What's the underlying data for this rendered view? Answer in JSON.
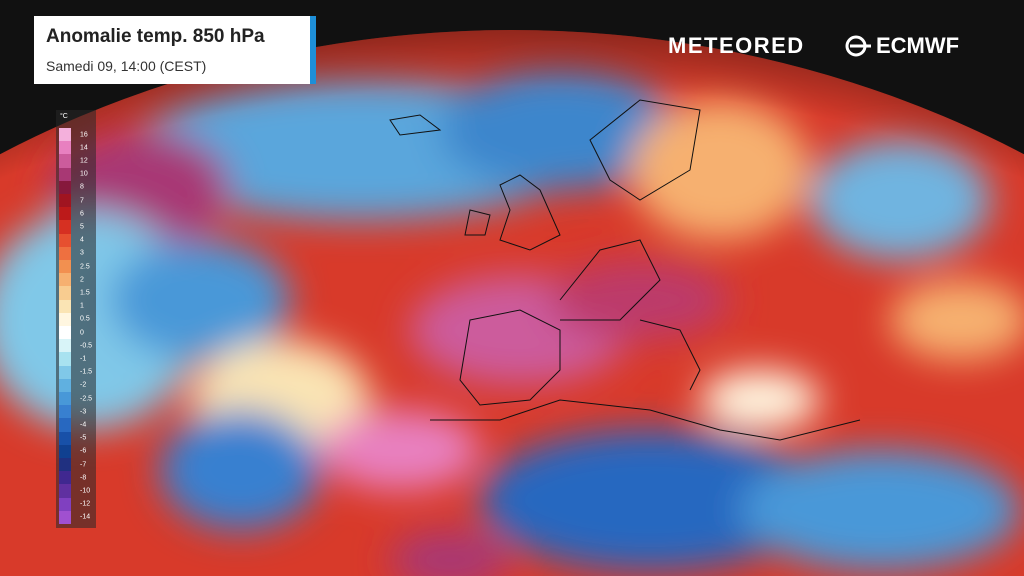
{
  "header": {
    "title": "Anomalie temp. 850 hPa",
    "subtitle": "Samedi 09, 14:00 (CEST)"
  },
  "logos": [
    "METEORED",
    "ECMWF"
  ],
  "legend": {
    "unit": "°C",
    "ticks": [
      {
        "label": "16",
        "color": "#f4b0dc"
      },
      {
        "label": "14",
        "color": "#e880c0"
      },
      {
        "label": "12",
        "color": "#cc5c9c"
      },
      {
        "label": "10",
        "color": "#a83874"
      },
      {
        "label": "8",
        "color": "#86183c"
      },
      {
        "label": "7",
        "color": "#a01420"
      },
      {
        "label": "6",
        "color": "#bc1a1a"
      },
      {
        "label": "5",
        "color": "#d63022"
      },
      {
        "label": "4",
        "color": "#e65030"
      },
      {
        "label": "3",
        "color": "#ee7040"
      },
      {
        "label": "2.5",
        "color": "#f29050"
      },
      {
        "label": "2",
        "color": "#f6b070"
      },
      {
        "label": "1.5",
        "color": "#f8cc90"
      },
      {
        "label": "1",
        "color": "#fae4b4"
      },
      {
        "label": "0.5",
        "color": "#fff6e0"
      },
      {
        "label": "0",
        "color": "#ffffff"
      },
      {
        "label": "-0.5",
        "color": "#d8f4f8"
      },
      {
        "label": "-1",
        "color": "#a8e2f0"
      },
      {
        "label": "-1.5",
        "color": "#80c8e8"
      },
      {
        "label": "-2",
        "color": "#60b0e0"
      },
      {
        "label": "-2.5",
        "color": "#4898d8"
      },
      {
        "label": "-3",
        "color": "#3880d0"
      },
      {
        "label": "-4",
        "color": "#2868c0"
      },
      {
        "label": "-5",
        "color": "#1850a8"
      },
      {
        "label": "-6",
        "color": "#104090"
      },
      {
        "label": "-7",
        "color": "#203080"
      },
      {
        "label": "-8",
        "color": "#402890"
      },
      {
        "label": "-10",
        "color": "#6030a0"
      },
      {
        "label": "-12",
        "color": "#8040c0"
      },
      {
        "label": "-14",
        "color": "#a050d0"
      }
    ]
  }
}
